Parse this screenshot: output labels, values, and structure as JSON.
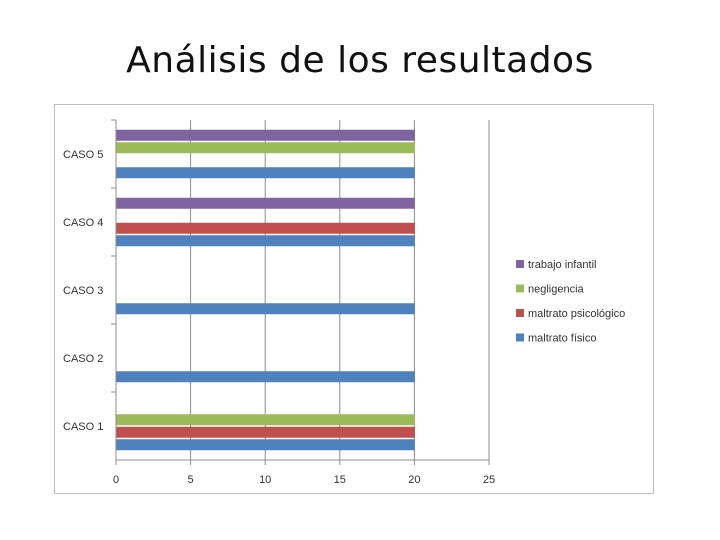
{
  "slide": {
    "title": "Análisis de los resultados"
  },
  "chart_data": {
    "type": "bar",
    "orientation": "horizontal",
    "categories": [
      "CASO 1",
      "CASO 2",
      "CASO 3",
      "CASO 4",
      "CASO 5"
    ],
    "series": [
      {
        "name": "maltrato físico",
        "color": "#4f81bd",
        "values": [
          20,
          20,
          20,
          20,
          20
        ]
      },
      {
        "name": "maltrato psicológico",
        "color": "#c0504d",
        "values": [
          20,
          0,
          0,
          20,
          0
        ]
      },
      {
        "name": "negligencia",
        "color": "#9bbb59",
        "values": [
          20,
          0,
          0,
          0,
          20
        ]
      },
      {
        "name": "trabajo infantil",
        "color": "#8064a2",
        "values": [
          0,
          0,
          0,
          20,
          20
        ]
      }
    ],
    "xlim": [
      0,
      25
    ],
    "xticks": [
      0,
      5,
      10,
      15,
      20,
      25
    ],
    "grid": true,
    "legend": "right"
  }
}
